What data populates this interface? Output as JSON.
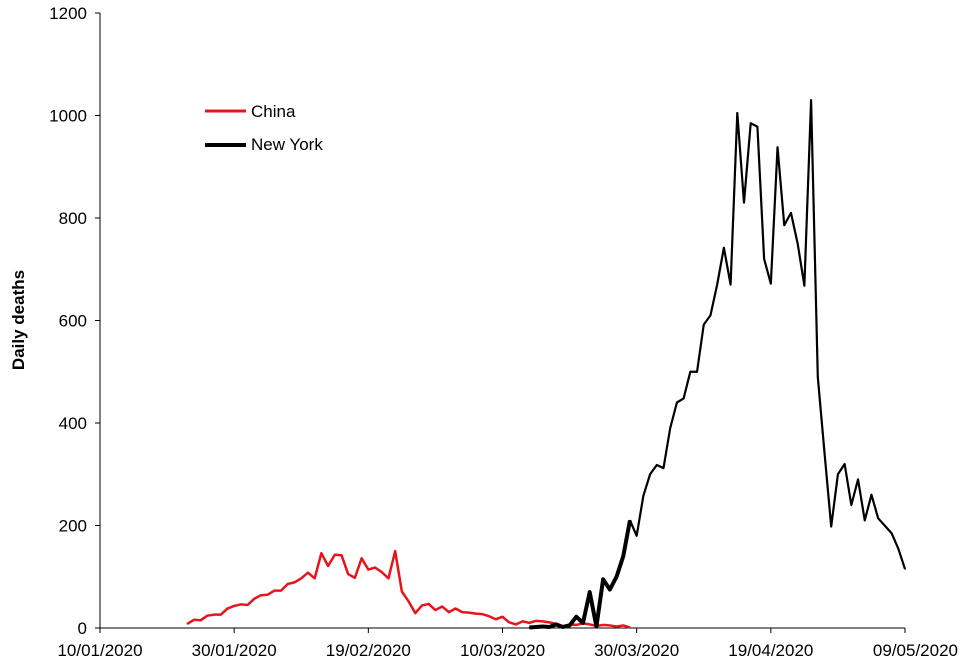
{
  "chart_data": {
    "type": "line",
    "title": "",
    "xlabel": "",
    "ylabel": "Daily deaths",
    "ylim": [
      0,
      1200
    ],
    "yticks": [
      "0",
      "200",
      "400",
      "600",
      "800",
      "1000",
      "1200"
    ],
    "xlim": [
      "2020-01-10",
      "2020-05-09"
    ],
    "xticks": [
      "10/01/2020",
      "30/01/2020",
      "19/02/2020",
      "10/03/2020",
      "30/03/2020",
      "19/04/2020",
      "09/05/2020"
    ],
    "grid": false,
    "legend_position": "top-left",
    "series": [
      {
        "name": "China",
        "color": "#e8141c",
        "points": [
          [
            "2020-01-23",
            8
          ],
          [
            "2020-01-24",
            16
          ],
          [
            "2020-01-25",
            15
          ],
          [
            "2020-01-26",
            24
          ],
          [
            "2020-01-27",
            26
          ],
          [
            "2020-01-28",
            26
          ],
          [
            "2020-01-29",
            38
          ],
          [
            "2020-01-30",
            43
          ],
          [
            "2020-01-31",
            46
          ],
          [
            "2020-02-01",
            45
          ],
          [
            "2020-02-02",
            57
          ],
          [
            "2020-02-03",
            64
          ],
          [
            "2020-02-04",
            65
          ],
          [
            "2020-02-05",
            73
          ],
          [
            "2020-02-06",
            73
          ],
          [
            "2020-02-07",
            86
          ],
          [
            "2020-02-08",
            89
          ],
          [
            "2020-02-09",
            97
          ],
          [
            "2020-02-10",
            108
          ],
          [
            "2020-02-11",
            97
          ],
          [
            "2020-02-12",
            146
          ],
          [
            "2020-02-13",
            121
          ],
          [
            "2020-02-14",
            143
          ],
          [
            "2020-02-15",
            142
          ],
          [
            "2020-02-16",
            105
          ],
          [
            "2020-02-17",
            98
          ],
          [
            "2020-02-18",
            136
          ],
          [
            "2020-02-19",
            114
          ],
          [
            "2020-02-20",
            118
          ],
          [
            "2020-02-21",
            109
          ],
          [
            "2020-02-22",
            97
          ],
          [
            "2020-02-23",
            150
          ],
          [
            "2020-02-24",
            71
          ],
          [
            "2020-02-25",
            52
          ],
          [
            "2020-02-26",
            29
          ],
          [
            "2020-02-27",
            44
          ],
          [
            "2020-02-28",
            47
          ],
          [
            "2020-02-29",
            35
          ],
          [
            "2020-03-01",
            42
          ],
          [
            "2020-03-02",
            31
          ],
          [
            "2020-03-03",
            38
          ],
          [
            "2020-03-04",
            31
          ],
          [
            "2020-03-05",
            30
          ],
          [
            "2020-03-06",
            28
          ],
          [
            "2020-03-07",
            27
          ],
          [
            "2020-03-08",
            23
          ],
          [
            "2020-03-09",
            17
          ],
          [
            "2020-03-10",
            22
          ],
          [
            "2020-03-11",
            11
          ],
          [
            "2020-03-12",
            7
          ],
          [
            "2020-03-13",
            13
          ],
          [
            "2020-03-14",
            10
          ],
          [
            "2020-03-15",
            14
          ],
          [
            "2020-03-16",
            13
          ],
          [
            "2020-03-17",
            11
          ],
          [
            "2020-03-18",
            8
          ],
          [
            "2020-03-19",
            3
          ],
          [
            "2020-03-20",
            7
          ],
          [
            "2020-03-21",
            6
          ],
          [
            "2020-03-22",
            9
          ],
          [
            "2020-03-23",
            7
          ],
          [
            "2020-03-24",
            4
          ],
          [
            "2020-03-25",
            6
          ],
          [
            "2020-03-26",
            5
          ],
          [
            "2020-03-27",
            3
          ],
          [
            "2020-03-28",
            5
          ],
          [
            "2020-03-29",
            1
          ]
        ]
      },
      {
        "name": "New York",
        "color": "#000000",
        "points": [
          [
            "2020-03-14",
            1
          ],
          [
            "2020-03-15",
            2
          ],
          [
            "2020-03-16",
            3
          ],
          [
            "2020-03-17",
            2
          ],
          [
            "2020-03-18",
            7
          ],
          [
            "2020-03-19",
            2
          ],
          [
            "2020-03-20",
            5
          ],
          [
            "2020-03-21",
            22
          ],
          [
            "2020-03-22",
            10
          ],
          [
            "2020-03-23",
            70
          ],
          [
            "2020-03-24",
            3
          ],
          [
            "2020-03-25",
            95
          ],
          [
            "2020-03-26",
            75
          ],
          [
            "2020-03-27",
            100
          ],
          [
            "2020-03-28",
            140
          ],
          [
            "2020-03-29",
            210
          ],
          [
            "2020-03-30",
            180
          ],
          [
            "2020-03-31",
            258
          ],
          [
            "2020-04-01",
            300
          ],
          [
            "2020-04-02",
            318
          ],
          [
            "2020-04-03",
            312
          ],
          [
            "2020-04-04",
            390
          ],
          [
            "2020-04-05",
            440
          ],
          [
            "2020-04-06",
            448
          ],
          [
            "2020-04-07",
            500
          ],
          [
            "2020-04-08",
            500
          ],
          [
            "2020-04-09",
            592
          ],
          [
            "2020-04-10",
            610
          ],
          [
            "2020-04-11",
            670
          ],
          [
            "2020-04-12",
            742
          ],
          [
            "2020-04-13",
            670
          ],
          [
            "2020-04-14",
            1005
          ],
          [
            "2020-04-15",
            830
          ],
          [
            "2020-04-16",
            985
          ],
          [
            "2020-04-17",
            978
          ],
          [
            "2020-04-18",
            720
          ],
          [
            "2020-04-19",
            672
          ],
          [
            "2020-04-20",
            938
          ],
          [
            "2020-04-21",
            786
          ],
          [
            "2020-04-22",
            810
          ],
          [
            "2020-04-23",
            750
          ],
          [
            "2020-04-24",
            668
          ],
          [
            "2020-04-25",
            1030
          ],
          [
            "2020-04-26",
            490
          ],
          [
            "2020-04-27",
            342
          ],
          [
            "2020-04-28",
            198
          ],
          [
            "2020-04-29",
            300
          ],
          [
            "2020-04-30",
            320
          ],
          [
            "2020-05-01",
            240
          ],
          [
            "2020-05-02",
            290
          ],
          [
            "2020-05-03",
            210
          ],
          [
            "2020-05-04",
            260
          ],
          [
            "2020-05-05",
            214
          ],
          [
            "2020-05-07",
            185
          ],
          [
            "2020-05-08",
            155
          ],
          [
            "2020-05-09",
            115
          ]
        ]
      }
    ]
  }
}
